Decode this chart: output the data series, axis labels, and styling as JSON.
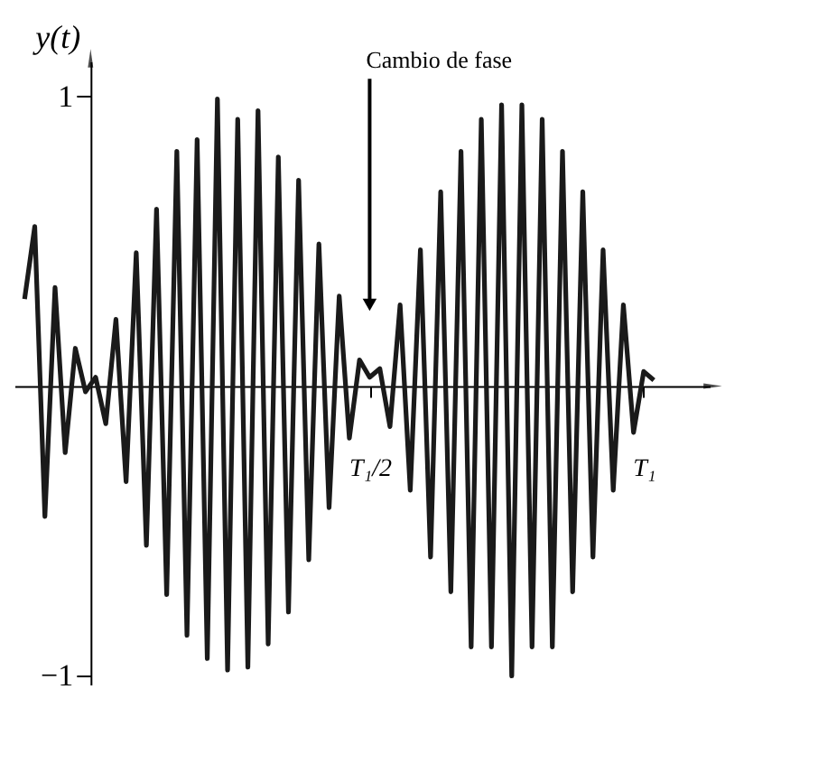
{
  "chart_data": {
    "type": "line",
    "ylabel": "y(t)",
    "annotations": [
      {
        "text": "Cambio de fase",
        "x": "T₁/2",
        "y": 0.28
      }
    ],
    "categories": [
      null,
      null,
      null,
      null,
      null,
      null,
      null,
      null,
      null,
      null,
      null,
      null,
      null,
      null,
      null,
      null,
      null,
      null,
      null,
      null,
      null,
      null,
      null,
      null,
      null,
      null,
      null,
      null,
      null,
      null,
      null,
      null,
      null,
      null,
      "T₁/2",
      null,
      null,
      null,
      null,
      null,
      null,
      null,
      null,
      null,
      null,
      null,
      null,
      null,
      null,
      null,
      null,
      null,
      null,
      null,
      null,
      null,
      null,
      null,
      null,
      null,
      null,
      "T₁",
      null
    ],
    "series": [
      {
        "color": "#1a1a1a",
        "values": [
          0.3,
          0.55,
          -0.45,
          0.34,
          -0.23,
          0.13,
          -0.02,
          0.03,
          -0.13,
          0.23,
          -0.33,
          0.46,
          -0.55,
          0.61,
          -0.72,
          0.81,
          -0.86,
          0.85,
          -0.94,
          0.99,
          -0.98,
          0.92,
          -0.97,
          0.95,
          -0.89,
          0.79,
          -0.78,
          0.71,
          -0.6,
          0.49,
          -0.42,
          0.31,
          -0.18,
          0.09,
          0.03,
          0.06,
          -0.14,
          0.28,
          -0.36,
          0.47,
          -0.59,
          0.67,
          -0.71,
          0.81,
          -0.9,
          0.92,
          -0.9,
          0.97,
          -1.0,
          0.97,
          -0.9,
          0.92,
          -0.9,
          0.81,
          -0.71,
          0.67,
          -0.59,
          0.47,
          -0.36,
          0.28,
          -0.16,
          0.05,
          0.02
        ]
      }
    ],
    "ylim": [
      -1.03,
      1.12
    ],
    "yticks": [
      1,
      {
        "value": -1,
        "label": "−1"
      }
    ],
    "grid": false,
    "marker": "none",
    "line_style": "solid"
  }
}
